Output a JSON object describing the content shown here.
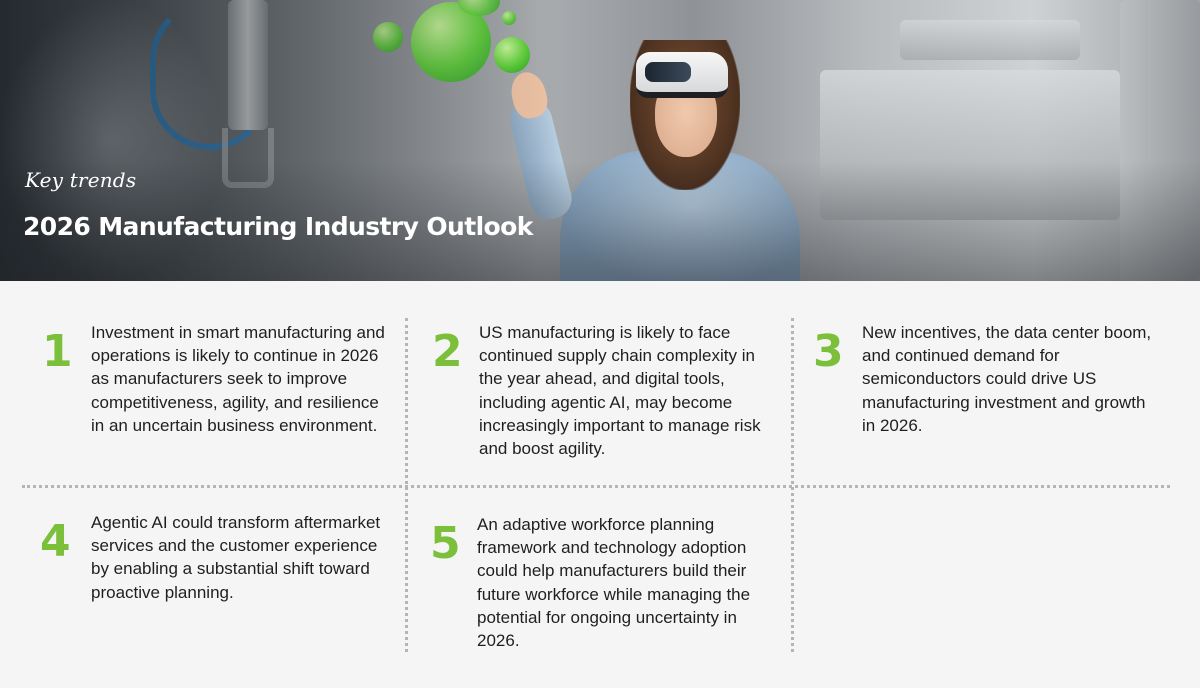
{
  "hero": {
    "kicker": "Key trends",
    "title": "2026 Manufacturing Industry Outlook"
  },
  "accent_color": "#7cbf3b",
  "trends": [
    {
      "number": "1",
      "text": "Investment in smart manufacturing and operations is likely to continue in 2026 as manufacturers seek to improve competitiveness, agility, and resilience in an uncertain business environment."
    },
    {
      "number": "2",
      "text": "US manufacturing is likely to face continued supply chain complexity in the year ahead, and digital tools, including agentic AI, may become increasingly important to manage risk and boost agility."
    },
    {
      "number": "3",
      "text": "New incentives, the data center boom, and continued demand for semiconductors could drive US manufacturing investment and growth in 2026."
    },
    {
      "number": "4",
      "text": "Agentic AI could transform aftermarket services and the customer experience by enabling a substantial shift toward proactive planning."
    },
    {
      "number": "5",
      "text": "An adaptive workforce planning framework and technology adoption could help manufacturers build their future workforce while managing the potential for ongoing uncertainty in 2026."
    }
  ]
}
